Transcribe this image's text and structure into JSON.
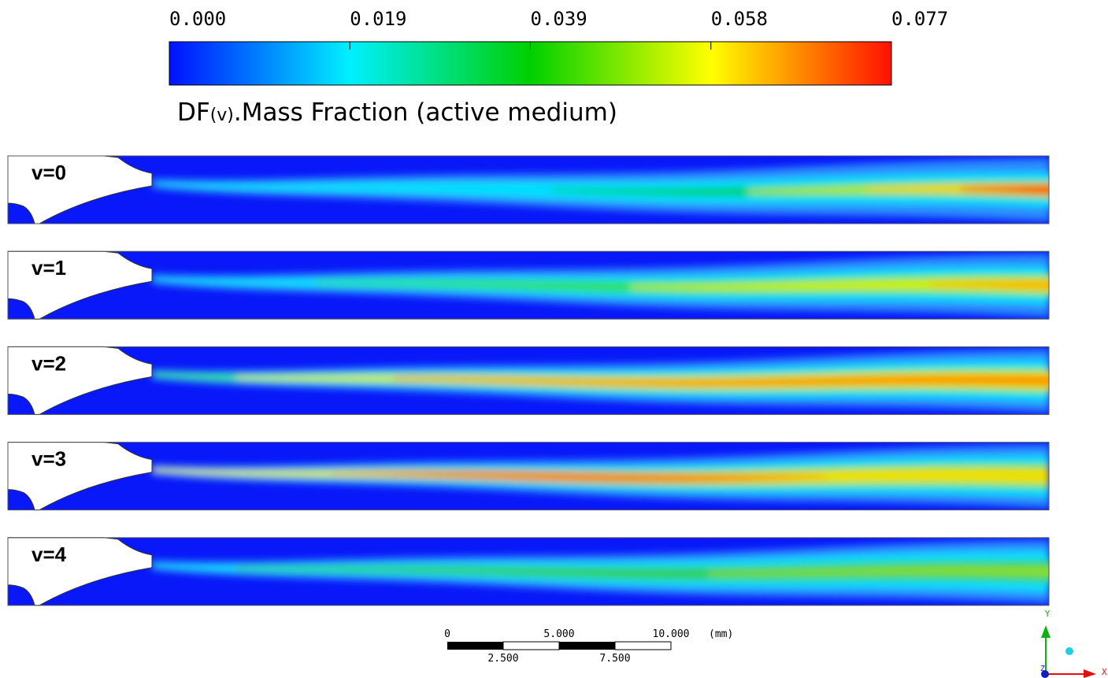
{
  "colorbar": {
    "ticks": [
      "0.000",
      "0.019",
      "0.039",
      "0.058",
      "0.077"
    ],
    "title": {
      "prefix": "DF",
      "subscript": "(v)",
      "rest": ".Mass Fraction (active medium)"
    }
  },
  "panels": [
    {
      "label": "v=0"
    },
    {
      "label": "v=1"
    },
    {
      "label": "v=2"
    },
    {
      "label": "v=3"
    },
    {
      "label": "v=4"
    }
  ],
  "scale_bar": {
    "top_labels": [
      "0",
      "5.000",
      "10.000"
    ],
    "unit": "(mm)",
    "bottom_labels": [
      "2.500",
      "7.500"
    ]
  },
  "axes_triad": {
    "y": "Y",
    "x": "X",
    "z": "Z"
  }
}
